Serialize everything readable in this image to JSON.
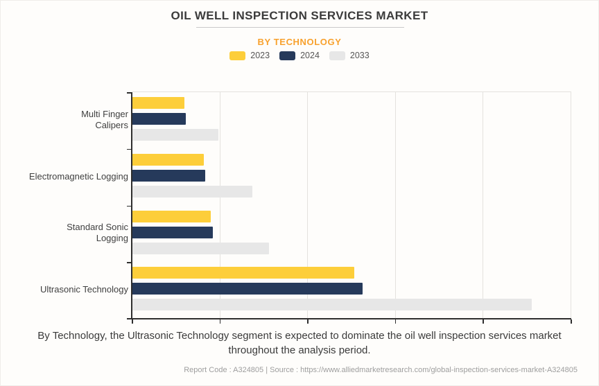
{
  "header": {
    "title": "OIL WELL INSPECTION SERVICES MARKET",
    "subtitle": "BY TECHNOLOGY"
  },
  "legend": [
    {
      "label": "2023",
      "color": "#fdce3a"
    },
    {
      "label": "2024",
      "color": "#263a5b"
    },
    {
      "label": "2033",
      "color": "#e7e7e7"
    }
  ],
  "chart_data": {
    "type": "bar",
    "orientation": "horizontal",
    "title": "OIL WELL INSPECTION SERVICES MARKET",
    "subtitle": "BY TECHNOLOGY",
    "categories": [
      "Multi Finger Calipers",
      "Electromagnetic Logging",
      "Standard Sonic Logging",
      "Ultrasonic Technology"
    ],
    "category_lines": [
      [
        "Multi Finger",
        "Calipers"
      ],
      [
        "Electromagnetic Logging"
      ],
      [
        "Standard Sonic",
        "Logging"
      ],
      [
        "Ultrasonic Technology"
      ]
    ],
    "series": [
      {
        "name": "2023",
        "color": "#fdce3a",
        "values": [
          0.59,
          0.81,
          0.89,
          2.53
        ]
      },
      {
        "name": "2024",
        "color": "#263a5b",
        "values": [
          0.61,
          0.83,
          0.92,
          2.62
        ]
      },
      {
        "name": "2033",
        "color": "#e7e7e7",
        "values": [
          0.98,
          1.37,
          1.56,
          4.55
        ]
      }
    ],
    "xlim": [
      0,
      5
    ],
    "gridline_count": 5,
    "x_tick_labels_visible": false,
    "grid": true,
    "legend_position": "top"
  },
  "description": "By Technology, the Ultrasonic Technology segment is expected to dominate the oil well inspection services market throughout the analysis period.",
  "footer": {
    "text": "Report Code : A324805  |  Source : https://www.alliedmarketresearch.com/global-inspection-services-market-A324805"
  },
  "colors": {
    "background": "#fefdfb",
    "subtitle_orange": "#f8a12d",
    "axis": "#2e2e2e",
    "gridline": "#e4e2de",
    "title_text": "#3b3b3b",
    "category_text": "#3f3f3f",
    "footer_text": "#9e9e9e"
  }
}
